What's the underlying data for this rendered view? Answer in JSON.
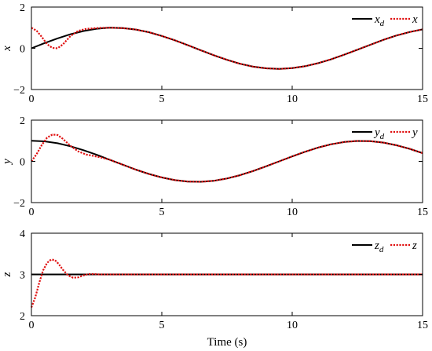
{
  "figure": {
    "xlabel": "Time (s)"
  },
  "chart_data": [
    {
      "type": "line",
      "ylabel": "x",
      "xlim": [
        0,
        15
      ],
      "ylim": [
        -2,
        2
      ],
      "xticks": [
        "0",
        "5",
        "10",
        "15"
      ],
      "yticks": [
        "-2",
        "0",
        "2"
      ],
      "legend_position": "top-right",
      "series": [
        {
          "name": "x",
          "name_sub": "d",
          "color": "#000000",
          "style": "solid",
          "x": [
            0,
            0.5,
            1,
            1.5,
            2,
            2.5,
            3,
            3.5,
            4,
            4.5,
            5,
            5.5,
            6,
            6.5,
            7,
            7.5,
            8,
            8.5,
            9,
            9.5,
            10,
            10.5,
            11,
            11.5,
            12,
            12.5,
            13,
            13.5,
            14,
            14.5,
            15
          ],
          "y": [
            0.0,
            0.25,
            0.48,
            0.68,
            0.84,
            0.95,
            1.0,
            0.98,
            0.91,
            0.78,
            0.6,
            0.39,
            0.15,
            -0.1,
            -0.34,
            -0.56,
            -0.75,
            -0.89,
            -0.97,
            -1.0,
            -0.96,
            -0.87,
            -0.72,
            -0.53,
            -0.31,
            -0.07,
            0.17,
            0.41,
            0.62,
            0.79,
            0.92
          ]
        },
        {
          "name": "x",
          "color": "#e01010",
          "style": "dotted",
          "x": [
            0,
            0.2,
            0.4,
            0.6,
            0.8,
            1.0,
            1.2,
            1.5,
            1.8,
            2.1,
            2.4,
            2.7,
            3.0,
            3.5,
            4,
            4.5,
            5,
            5.5,
            6,
            6.5,
            7,
            7.5,
            8,
            8.5,
            9,
            9.5,
            10,
            10.5,
            11,
            11.5,
            12,
            12.5,
            13,
            13.5,
            14,
            14.5,
            15
          ],
          "y": [
            1.0,
            0.85,
            0.55,
            0.2,
            0.02,
            0.0,
            0.18,
            0.6,
            0.85,
            0.94,
            0.97,
            0.99,
            1.0,
            0.98,
            0.91,
            0.78,
            0.6,
            0.39,
            0.15,
            -0.1,
            -0.34,
            -0.56,
            -0.75,
            -0.89,
            -0.97,
            -1.0,
            -0.96,
            -0.87,
            -0.72,
            -0.53,
            -0.31,
            -0.07,
            0.17,
            0.41,
            0.62,
            0.79,
            0.92
          ]
        }
      ]
    },
    {
      "type": "line",
      "ylabel": "y",
      "xlim": [
        0,
        15
      ],
      "ylim": [
        -2,
        2
      ],
      "xticks": [
        "0",
        "5",
        "10",
        "15"
      ],
      "yticks": [
        "-2",
        "0",
        "2"
      ],
      "legend_position": "top-right",
      "series": [
        {
          "name": "y",
          "name_sub": "d",
          "color": "#000000",
          "style": "solid",
          "x": [
            0,
            0.5,
            1,
            1.5,
            2,
            2.5,
            3,
            3.5,
            4,
            4.5,
            5,
            5.5,
            6,
            6.5,
            7,
            7.5,
            8,
            8.5,
            9,
            9.5,
            10,
            10.5,
            11,
            11.5,
            12,
            12.5,
            13,
            13.5,
            14,
            14.5,
            15
          ],
          "y": [
            1.0,
            0.97,
            0.88,
            0.73,
            0.54,
            0.32,
            0.08,
            -0.16,
            -0.4,
            -0.61,
            -0.78,
            -0.91,
            -0.98,
            -0.99,
            -0.94,
            -0.83,
            -0.67,
            -0.47,
            -0.24,
            0.0,
            0.24,
            0.47,
            0.67,
            0.83,
            0.94,
            0.99,
            0.98,
            0.91,
            0.78,
            0.61,
            0.4
          ]
        },
        {
          "name": "y",
          "color": "#e01010",
          "style": "dotted",
          "x": [
            0,
            0.2,
            0.4,
            0.6,
            0.8,
            1.0,
            1.2,
            1.5,
            1.8,
            2.1,
            2.4,
            2.7,
            3.0,
            3.5,
            4,
            4.5,
            5,
            5.5,
            6,
            6.5,
            7,
            7.5,
            8,
            8.5,
            9,
            9.5,
            10,
            10.5,
            11,
            11.5,
            12,
            12.5,
            13,
            13.5,
            14,
            14.5,
            15
          ],
          "y": [
            0.0,
            0.35,
            0.8,
            1.15,
            1.3,
            1.28,
            1.1,
            0.75,
            0.48,
            0.33,
            0.26,
            0.18,
            0.08,
            -0.16,
            -0.4,
            -0.61,
            -0.78,
            -0.91,
            -0.98,
            -0.99,
            -0.94,
            -0.83,
            -0.67,
            -0.47,
            -0.24,
            0.0,
            0.24,
            0.47,
            0.67,
            0.83,
            0.94,
            0.99,
            0.98,
            0.91,
            0.78,
            0.61,
            0.4
          ]
        }
      ]
    },
    {
      "type": "line",
      "ylabel": "z",
      "xlim": [
        0,
        15
      ],
      "ylim": [
        2,
        4
      ],
      "xticks": [
        "0",
        "5",
        "10",
        "15"
      ],
      "yticks": [
        "2",
        "3",
        "4"
      ],
      "legend_position": "top-right",
      "series": [
        {
          "name": "z",
          "name_sub": "d",
          "color": "#000000",
          "style": "solid",
          "x": [
            0,
            15
          ],
          "y": [
            3.0,
            3.0
          ]
        },
        {
          "name": "z",
          "color": "#e01010",
          "style": "dotted",
          "x": [
            0,
            0.15,
            0.3,
            0.45,
            0.6,
            0.75,
            0.9,
            1.05,
            1.2,
            1.4,
            1.6,
            1.8,
            2.0,
            2.2,
            2.4,
            2.6,
            2.8,
            3.0,
            15
          ],
          "y": [
            2.2,
            2.45,
            2.8,
            3.1,
            3.28,
            3.36,
            3.35,
            3.25,
            3.12,
            2.98,
            2.92,
            2.93,
            2.98,
            3.01,
            3.01,
            3.0,
            3.0,
            3.0,
            3.0
          ]
        }
      ]
    }
  ]
}
